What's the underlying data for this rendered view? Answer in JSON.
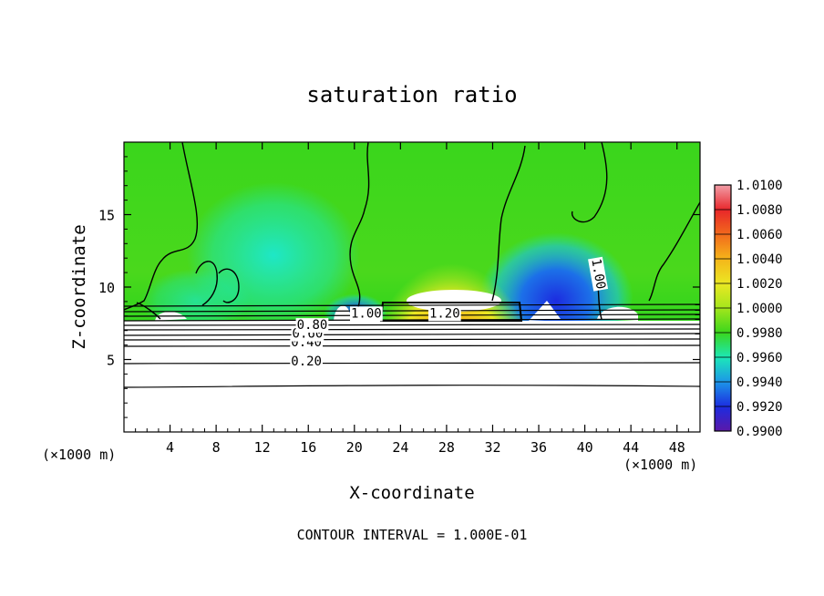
{
  "chart_data": {
    "type": "heatmap",
    "title": "saturation ratio",
    "xlabel": "X-coordinate",
    "ylabel": "Z-coordinate",
    "x_unit_left": "(×1000 m)",
    "x_unit_right": "(×1000 m)",
    "xlim": [
      0,
      50
    ],
    "ylim": [
      0,
      20
    ],
    "x_ticks": [
      4,
      8,
      12,
      16,
      20,
      24,
      28,
      32,
      36,
      40,
      44,
      48
    ],
    "y_ticks": [
      5,
      10,
      15
    ],
    "colorbar": {
      "labels": [
        "1.0100",
        "1.0080",
        "1.0060",
        "1.0040",
        "1.0020",
        "1.0000",
        "0.9980",
        "0.9960",
        "0.9940",
        "0.9920",
        "0.9900"
      ],
      "colors": [
        "#f29ea8",
        "#e8262a",
        "#f26a1c",
        "#f5b51a",
        "#ebe823",
        "#a3e61c",
        "#3ad61c",
        "#1ce8b8",
        "#1c96e8",
        "#1c2ce0",
        "#5c18a8"
      ]
    },
    "contour_labels": [
      {
        "text": "0.20",
        "x": 14.5,
        "y": 4.6
      },
      {
        "text": "0.40",
        "x": 14.5,
        "y": 5.9
      },
      {
        "text": "0.60",
        "x": 14.6,
        "y": 6.5
      },
      {
        "text": "0.80",
        "x": 15.0,
        "y": 7.1
      },
      {
        "text": "1.00",
        "x": 40.6,
        "y": 11.9
      },
      {
        "text": "1.20",
        "x": 26.5,
        "y": 7.9
      },
      {
        "text": "1.00",
        "x": 19.7,
        "y": 7.9
      }
    ],
    "footer": "CONTOUR INTERVAL = 1.000E-01"
  }
}
